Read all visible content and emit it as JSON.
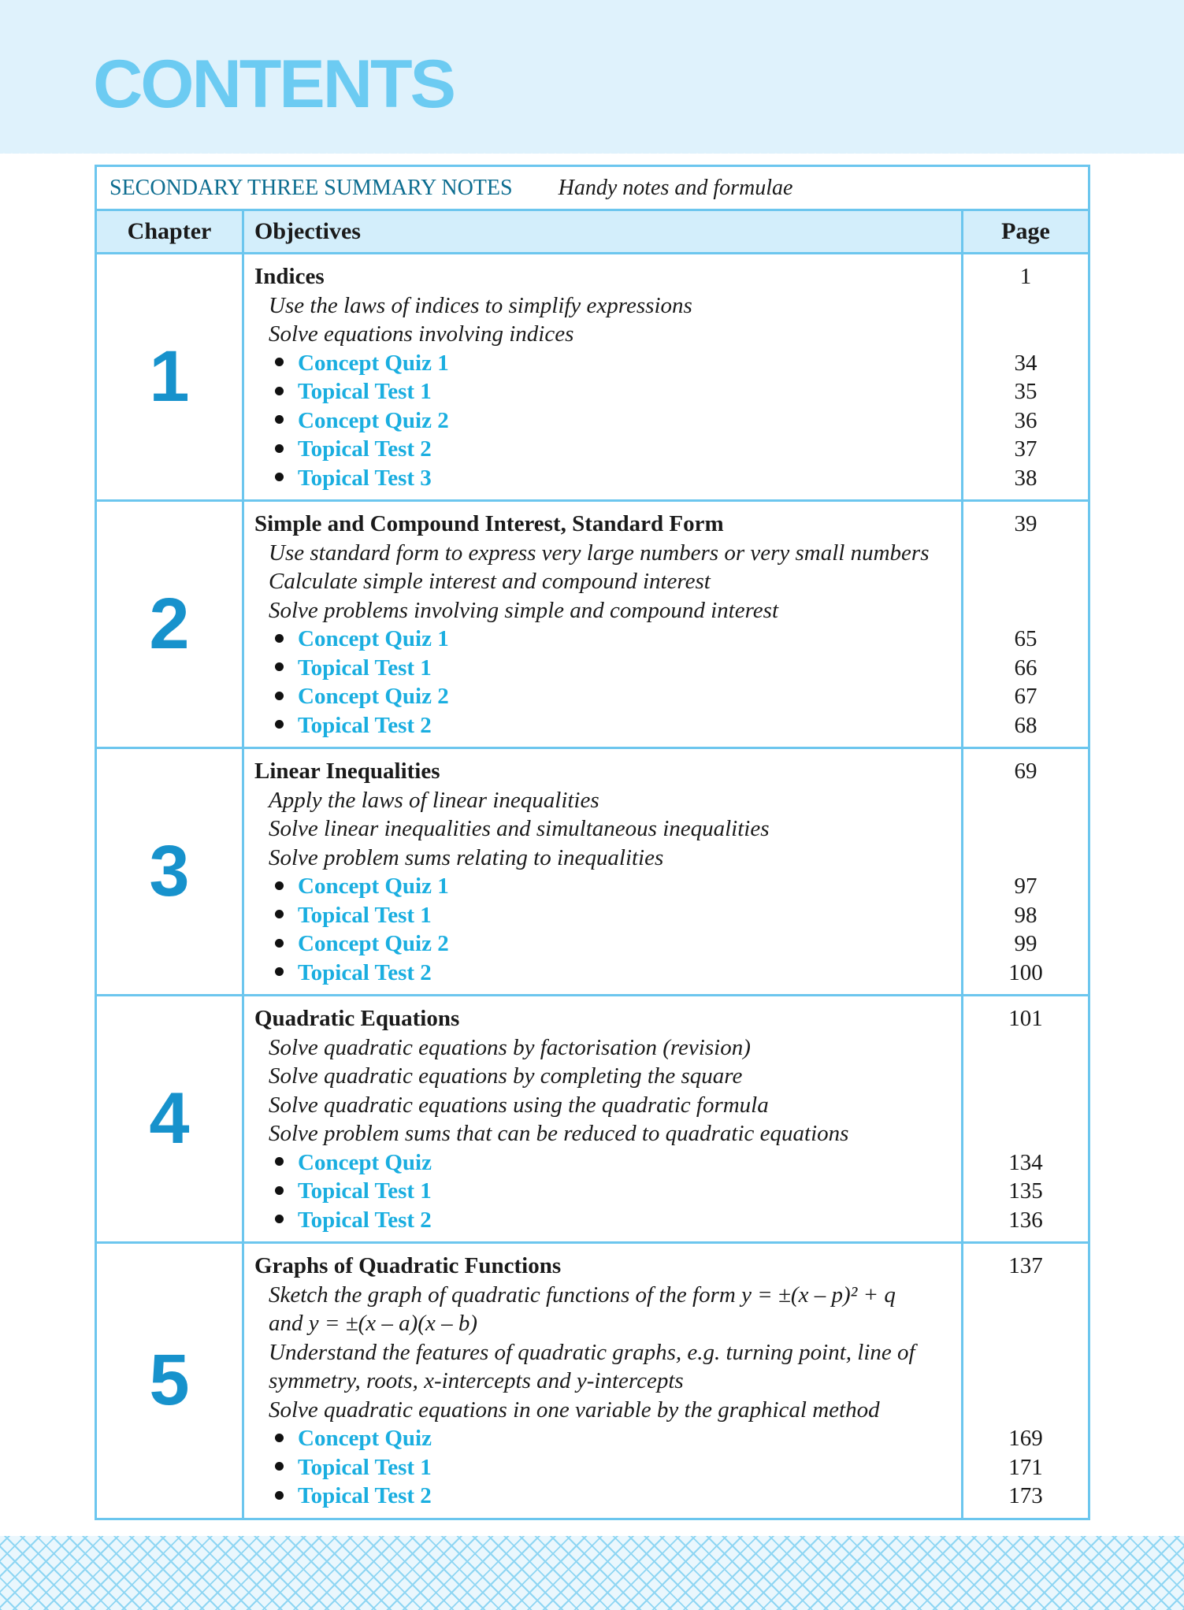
{
  "page_title": "CONTENTS",
  "section": {
    "name": "SECONDARY THREE SUMMARY NOTES",
    "subtitle": "Handy notes and formulae"
  },
  "headers": {
    "chapter": "Chapter",
    "objectives": "Objectives",
    "page": "Page"
  },
  "colors": {
    "band": "#dff2fc",
    "title": "#6ccbf2",
    "border": "#6cc6ee",
    "chapter_number": "#1792cc",
    "link": "#1aaee0",
    "section": "#0d6d90"
  },
  "chapters": [
    {
      "number": "1",
      "title": "Indices",
      "page": "1",
      "objectives": [
        "Use the laws of indices to simplify expressions",
        "Solve equations involving indices"
      ],
      "items": [
        {
          "label": "Concept Quiz 1",
          "page": "34"
        },
        {
          "label": "Topical Test 1",
          "page": "35"
        },
        {
          "label": "Concept Quiz 2",
          "page": "36"
        },
        {
          "label": "Topical Test 2",
          "page": "37"
        },
        {
          "label": "Topical Test 3",
          "page": "38"
        }
      ]
    },
    {
      "number": "2",
      "title": "Simple and Compound Interest, Standard Form",
      "page": "39",
      "objectives": [
        "Use standard form to express very large numbers or very small numbers",
        "Calculate simple interest and compound interest",
        "Solve problems involving simple and compound interest"
      ],
      "items": [
        {
          "label": "Concept Quiz 1",
          "page": "65"
        },
        {
          "label": "Topical Test 1",
          "page": "66"
        },
        {
          "label": "Concept Quiz 2",
          "page": "67"
        },
        {
          "label": "Topical Test 2",
          "page": "68"
        }
      ]
    },
    {
      "number": "3",
      "title": "Linear Inequalities",
      "page": "69",
      "objectives": [
        "Apply the laws of linear inequalities",
        "Solve linear inequalities and simultaneous inequalities",
        "Solve problem sums relating to inequalities"
      ],
      "items": [
        {
          "label": "Concept Quiz 1",
          "page": "97"
        },
        {
          "label": "Topical Test 1",
          "page": "98"
        },
        {
          "label": "Concept Quiz 2",
          "page": "99"
        },
        {
          "label": "Topical Test 2",
          "page": "100"
        }
      ]
    },
    {
      "number": "4",
      "title": "Quadratic Equations",
      "page": "101",
      "objectives": [
        "Solve quadratic equations by factorisation (revision)",
        "Solve quadratic equations by completing the square",
        "Solve quadratic equations using the quadratic formula",
        "Solve problem sums that can be reduced to quadratic equations"
      ],
      "items": [
        {
          "label": "Concept Quiz",
          "page": "134"
        },
        {
          "label": "Topical Test 1",
          "page": "135"
        },
        {
          "label": "Topical Test 2",
          "page": "136"
        }
      ]
    },
    {
      "number": "5",
      "title": "Graphs of Quadratic Functions",
      "page": "137",
      "objectives": [
        "Sketch the graph of quadratic functions of the form y = ±(x – p)² + q",
        "and y = ±(x – a)(x – b)",
        "Understand the features of quadratic graphs, e.g. turning point, line of",
        "symmetry, roots, x-intercepts and y-intercepts",
        "Solve quadratic equations in one variable by the graphical method"
      ],
      "items": [
        {
          "label": "Concept Quiz",
          "page": "169"
        },
        {
          "label": "Topical Test 1",
          "page": "171"
        },
        {
          "label": "Topical Test 2",
          "page": "173"
        }
      ]
    }
  ]
}
